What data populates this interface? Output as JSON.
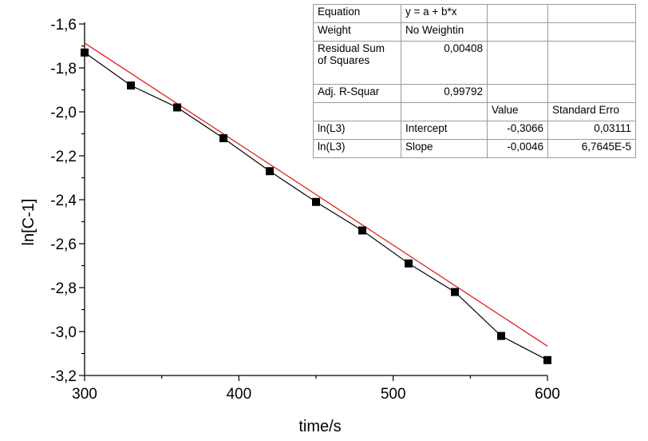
{
  "chart_data": {
    "type": "scatter",
    "xlabel": "time/s",
    "ylabel": "ln[C-1]",
    "xlim": [
      300,
      600
    ],
    "ylim": [
      -3.2,
      -1.6
    ],
    "x_ticks": [
      "300",
      "400",
      "500",
      "600"
    ],
    "y_ticks": [
      "-1,6",
      "-1,8",
      "-2,0",
      "-2,2",
      "-2,4",
      "-2,6",
      "-2,8",
      "-3,0",
      "-3,2"
    ],
    "series": [
      {
        "x": [
          300,
          330,
          360,
          390,
          420,
          450,
          480,
          510,
          540,
          570,
          600
        ],
        "y": [
          -1.73,
          -1.88,
          -1.98,
          -2.12,
          -2.27,
          -2.41,
          -2.54,
          -2.69,
          -2.82,
          -3.02,
          -3.13
        ],
        "color": "#000000",
        "marker": "square",
        "line": true
      }
    ],
    "fit_line": {
      "intercept": -0.3066,
      "slope": -0.0046,
      "color": "#e0201b"
    },
    "grid": false
  },
  "fit_table": {
    "rows": [
      [
        "Equation",
        "y = a + b*x",
        "",
        ""
      ],
      [
        "Weight",
        "No Weightin",
        "",
        ""
      ],
      [
        "Residual Sum of Squares",
        "0,00408",
        "",
        ""
      ],
      [
        "Adj. R-Squar",
        "0,99792",
        "",
        ""
      ],
      [
        "",
        "",
        "Value",
        "Standard Erro"
      ],
      [
        "ln(L3)",
        "Intercept",
        "-0,3066",
        "0,03111"
      ],
      [
        "ln(L3)",
        "Slope",
        "-0,0046",
        "6,7645E-5"
      ]
    ]
  }
}
